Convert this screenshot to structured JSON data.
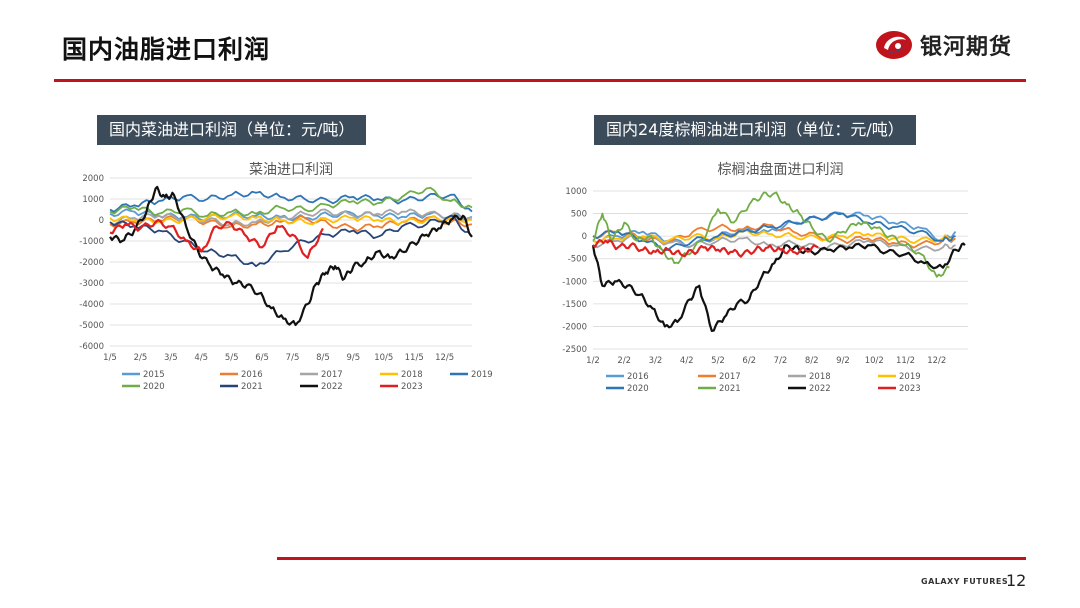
{
  "slide": {
    "title": "国内油脂进口利润",
    "brand": "银河期货",
    "footer_brand": "GALAXY FUTURES",
    "page_number": "12",
    "accent_color": "#c0141c"
  },
  "panels": [
    {
      "header": "国内菜油进口利润（单位：元/吨）"
    },
    {
      "header": "国内24度棕榈油进口利润（单位：元/吨）"
    }
  ],
  "chart_data": [
    {
      "type": "line",
      "title": "菜油进口利润",
      "x_ticks": [
        "1/5",
        "2/5",
        "3/5",
        "4/5",
        "5/5",
        "6/5",
        "7/5",
        "8/5",
        "9/5",
        "10/5",
        "11/5",
        "12/5"
      ],
      "y_ticks": [
        2000,
        1000,
        0,
        -1000,
        -2000,
        -3000,
        -4000,
        -5000,
        -6000
      ],
      "ylim": [
        -6000,
        2000
      ],
      "x_range": [
        1,
        12.9
      ],
      "grid": true,
      "legend_placement": "bottom",
      "legend_order": [
        "2015",
        "2016",
        "2017",
        "2018",
        "2019",
        "2020",
        "2021",
        "2022",
        "2023"
      ],
      "series": [
        {
          "name": "2015",
          "color": "#5b9bd5",
          "x": [
            1,
            1.8,
            2.6,
            3.4,
            4.2,
            5,
            5.8,
            6.6,
            7.4,
            8.2,
            9,
            9.8,
            10.6,
            11.4,
            12.2,
            12.9
          ],
          "y": [
            300,
            400,
            200,
            150,
            100,
            250,
            200,
            150,
            100,
            250,
            300,
            200,
            150,
            250,
            200,
            150
          ]
        },
        {
          "name": "2016",
          "color": "#ed7d31",
          "x": [
            1,
            1.8,
            2.6,
            3.4,
            4.2,
            5,
            5.8,
            6.6,
            7.4,
            8.2,
            9,
            9.8,
            10.6,
            11.4,
            12.2,
            12.9
          ],
          "y": [
            -200,
            -100,
            0,
            100,
            -100,
            -300,
            -200,
            -100,
            100,
            -200,
            -400,
            -300,
            -100,
            100,
            -100,
            -200
          ]
        },
        {
          "name": "2017",
          "color": "#a5a5a5",
          "x": [
            1,
            1.8,
            2.6,
            3.4,
            4.2,
            5,
            5.8,
            6.6,
            7.4,
            8.2,
            9,
            9.8,
            10.6,
            11.4,
            12.2,
            12.9
          ],
          "y": [
            -100,
            100,
            200,
            100,
            0,
            -200,
            -100,
            100,
            300,
            400,
            200,
            300,
            400,
            300,
            200,
            100
          ]
        },
        {
          "name": "2018",
          "color": "#ffc000",
          "x": [
            1,
            1.8,
            2.6,
            3.4,
            4.2,
            5,
            5.8,
            6.6,
            7.4,
            8.2,
            9,
            9.8,
            10.6,
            11.4,
            12.2,
            12.9
          ],
          "y": [
            100,
            0,
            -100,
            0,
            100,
            200,
            100,
            0,
            -100,
            0,
            100,
            0,
            -100,
            0,
            100,
            0
          ]
        },
        {
          "name": "2019",
          "color": "#2e75b6",
          "x": [
            1,
            1.8,
            2.6,
            3.4,
            4.2,
            5,
            5.8,
            6.6,
            7.4,
            8.2,
            9,
            9.8,
            10.6,
            11.4,
            12.2,
            12.9
          ],
          "y": [
            500,
            700,
            900,
            1100,
            1000,
            1200,
            1300,
            1100,
            1000,
            900,
            1100,
            1000,
            900,
            1100,
            1200,
            400
          ]
        },
        {
          "name": "2020",
          "color": "#70ad47",
          "x": [
            1,
            1.8,
            2.6,
            3.4,
            4.2,
            5,
            5.8,
            6.6,
            7.4,
            8.2,
            9,
            9.8,
            10.6,
            11.4,
            12.2,
            12.9
          ],
          "y": [
            400,
            600,
            300,
            500,
            200,
            400,
            300,
            600,
            500,
            700,
            900,
            800,
            1100,
            1500,
            900,
            600
          ]
        },
        {
          "name": "2021",
          "color": "#264478",
          "x": [
            1,
            1.8,
            2.6,
            3.4,
            4.2,
            5,
            5.8,
            6.6,
            7.4,
            8.2,
            9,
            9.8,
            10.6,
            11.4,
            12.2,
            12.9
          ],
          "y": [
            -100,
            -300,
            -500,
            -1000,
            -1500,
            -1700,
            -2200,
            -1500,
            -1000,
            -700,
            -500,
            -800,
            -300,
            -200,
            200,
            -800
          ]
        },
        {
          "name": "2022",
          "color": "#111111",
          "x": [
            1,
            1.4,
            1.8,
            2.2,
            2.5,
            2.8,
            3.1,
            3.5,
            3.9,
            4.3,
            4.7,
            5.1,
            5.5,
            5.9,
            6.3,
            6.7,
            7.1,
            7.5,
            7.8,
            8.1,
            8.4,
            8.7,
            9,
            9.4,
            9.8,
            10.2,
            10.6,
            11,
            11.4,
            11.8,
            12.2,
            12.6,
            12.9
          ],
          "y": [
            -800,
            -1000,
            -500,
            400,
            1500,
            1100,
            1200,
            -300,
            -1500,
            -2200,
            -2600,
            -3000,
            -3100,
            -3500,
            -4200,
            -4700,
            -5000,
            -4000,
            -3000,
            -2500,
            -2200,
            -2800,
            -2200,
            -2000,
            -1500,
            -1800,
            -1500,
            -1100,
            -700,
            -400,
            0,
            200,
            -800
          ]
        },
        {
          "name": "2023",
          "color": "#e02020",
          "x": [
            1,
            1.5,
            2,
            2.5,
            3,
            3.5,
            4,
            4.5,
            5,
            5.5,
            6,
            6.5,
            7,
            7.5,
            8
          ],
          "y": [
            -600,
            -200,
            -400,
            -100,
            -300,
            -1000,
            -1500,
            -300,
            -200,
            -800,
            -1300,
            -300,
            -700,
            -1800,
            -400
          ]
        }
      ]
    },
    {
      "type": "line",
      "title": "棕榈油盘面进口利润",
      "x_ticks": [
        "1/2",
        "2/2",
        "3/2",
        "4/2",
        "5/2",
        "6/2",
        "7/2",
        "8/2",
        "9/2",
        "10/2",
        "11/2",
        "12/2"
      ],
      "y_ticks": [
        1000,
        500,
        0,
        -500,
        -1000,
        -1500,
        -2000,
        -2500
      ],
      "ylim": [
        -2500,
        1000
      ],
      "x_range": [
        1,
        13
      ],
      "grid": true,
      "legend_placement": "bottom",
      "legend_order": [
        "2016",
        "2017",
        "2018",
        "2019",
        "2020",
        "2021",
        "2022",
        "2023"
      ],
      "series": [
        {
          "name": "2016",
          "color": "#5b9bd5",
          "x": [
            1,
            1.8,
            2.6,
            3.4,
            4.2,
            5,
            5.8,
            6.6,
            7.4,
            8.2,
            9,
            9.8,
            10.6,
            11.4,
            12.2,
            12.6
          ],
          "y": [
            -100,
            0,
            100,
            -100,
            -200,
            0,
            150,
            100,
            300,
            400,
            500,
            450,
            300,
            200,
            -100,
            100
          ]
        },
        {
          "name": "2017",
          "color": "#ed7d31",
          "x": [
            1,
            1.8,
            2.6,
            3.4,
            4.2,
            5,
            5.8,
            6.6,
            7.4,
            8.2,
            9,
            9.8,
            10.6,
            11.4,
            12.2,
            12.6
          ],
          "y": [
            0,
            100,
            -50,
            -150,
            100,
            200,
            150,
            250,
            100,
            0,
            -100,
            -50,
            -150,
            -200,
            -100,
            -50
          ]
        },
        {
          "name": "2018",
          "color": "#a5a5a5",
          "x": [
            1,
            1.8,
            2.6,
            3.4,
            4.2,
            5,
            5.8,
            6.6,
            7.4,
            8.2,
            9,
            9.8,
            10.6,
            11.4,
            12.2,
            12.6
          ],
          "y": [
            -200,
            -100,
            0,
            -150,
            -200,
            -100,
            -50,
            -200,
            -150,
            -250,
            -200,
            -100,
            -200,
            -300,
            -250,
            -200
          ]
        },
        {
          "name": "2019",
          "color": "#ffc000",
          "x": [
            1,
            1.8,
            2.6,
            3.4,
            4.2,
            5,
            5.8,
            6.6,
            7.4,
            8.2,
            9,
            9.8,
            10.6,
            11.4,
            12.2,
            12.6
          ],
          "y": [
            -100,
            -50,
            0,
            -100,
            0,
            -50,
            100,
            50,
            0,
            -50,
            0,
            50,
            -50,
            -100,
            -50,
            0
          ]
        },
        {
          "name": "2020",
          "color": "#2e75b6",
          "x": [
            1,
            1.8,
            2.6,
            3.4,
            4.2,
            5,
            5.8,
            6.6,
            7.4,
            8.2,
            9,
            9.8,
            10.6,
            11.4,
            12.2,
            12.6
          ],
          "y": [
            0,
            100,
            -100,
            -300,
            -100,
            0,
            100,
            200,
            300,
            400,
            500,
            300,
            200,
            100,
            -100,
            0
          ]
        },
        {
          "name": "2021",
          "color": "#70ad47",
          "x": [
            1,
            1.3,
            1.6,
            2,
            2.4,
            2.8,
            3.2,
            3.6,
            4,
            4.5,
            5,
            5.5,
            6,
            6.4,
            6.8,
            7.2,
            7.6,
            8,
            8.5,
            9,
            9.5,
            10,
            10.5,
            11,
            11.5,
            12,
            12.4
          ],
          "y": [
            -100,
            500,
            -100,
            300,
            -100,
            0,
            -300,
            -600,
            -400,
            -100,
            600,
            300,
            700,
            900,
            950,
            700,
            500,
            200,
            -100,
            100,
            300,
            200,
            0,
            -200,
            -400,
            -900,
            -700
          ]
        },
        {
          "name": "2022",
          "color": "#111111",
          "x": [
            1,
            1.3,
            1.7,
            2.1,
            2.5,
            2.9,
            3.3,
            3.7,
            4.1,
            4.4,
            4.8,
            5.2,
            5.6,
            6,
            6.4,
            6.8,
            7.2,
            7.6,
            8,
            8.6,
            9.2,
            9.8,
            10.4,
            11,
            11.6,
            12.2,
            12.6,
            12.9
          ],
          "y": [
            -200,
            -1100,
            -1000,
            -1100,
            -1300,
            -1600,
            -2000,
            -1900,
            -1400,
            -1100,
            -2100,
            -1800,
            -1500,
            -1400,
            -900,
            -600,
            -200,
            -300,
            -350,
            -300,
            -250,
            -200,
            -350,
            -400,
            -600,
            -700,
            -300,
            -200
          ]
        },
        {
          "name": "2023",
          "color": "#e02020",
          "x": [
            1,
            1.4,
            1.8,
            2.2,
            2.6,
            3,
            3.4,
            3.8,
            4.2,
            4.6,
            5,
            5.4,
            5.8,
            6.2,
            6.6,
            7,
            7.4,
            7.8,
            8.2
          ],
          "y": [
            -200,
            -100,
            -250,
            -200,
            -300,
            -350,
            -300,
            -400,
            -350,
            -250,
            -300,
            -350,
            -400,
            -300,
            -250,
            -300,
            -350,
            -300,
            -250
          ]
        }
      ]
    }
  ]
}
